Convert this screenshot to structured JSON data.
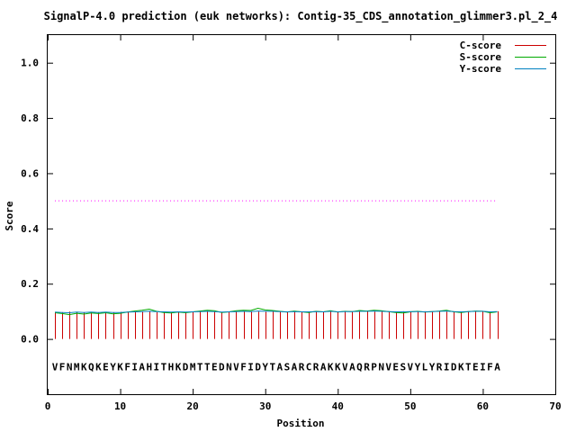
{
  "chart_data": {
    "type": "line",
    "title": "SignalP-4.0 prediction (euk networks): Contig-35_CDS_annotation_glimmer3.pl_2_4",
    "xlabel": "Position",
    "ylabel": "Score",
    "xlim": [
      0,
      70
    ],
    "ylim": [
      -0.2,
      1.1
    ],
    "xticks": [
      0,
      10,
      20,
      30,
      40,
      50,
      60,
      70
    ],
    "yticks": [
      0.0,
      0.2,
      0.4,
      0.6,
      0.8,
      1.0
    ],
    "xtick_labels": [
      "0",
      "10",
      "20",
      "30",
      "40",
      "50",
      "60",
      "70"
    ],
    "ytick_labels": [
      "0.0",
      "0.2",
      "0.4",
      "0.6",
      "0.8",
      "1.0"
    ],
    "grid": false,
    "legend_position": "top-right",
    "threshold": {
      "y": 0.5,
      "color": "#ff00ff"
    },
    "sequence": "VFNMKQKEYKFIAHITHKDMTTEDNVFIDYTASARCRAKKVAQRPNVESVYLYRIDKTEIFA",
    "series": [
      {
        "name": "C-score",
        "style": "impulses",
        "color": "#cc0000",
        "values": [
          0.098,
          0.097,
          0.099,
          0.098,
          0.097,
          0.098,
          0.097,
          0.098,
          0.097,
          0.098,
          0.097,
          0.098,
          0.099,
          0.098,
          0.097,
          0.098,
          0.097,
          0.098,
          0.098,
          0.099,
          0.098,
          0.099,
          0.098,
          0.098,
          0.099,
          0.098,
          0.099,
          0.098,
          0.099,
          0.098,
          0.099,
          0.098,
          0.099,
          0.098,
          0.099,
          0.098,
          0.099,
          0.098,
          0.099,
          0.099,
          0.098,
          0.099,
          0.099,
          0.1,
          0.099,
          0.099,
          0.1,
          0.099,
          0.1,
          0.099,
          0.099,
          0.1,
          0.099,
          0.1,
          0.099,
          0.1,
          0.099,
          0.1,
          0.099,
          0.1,
          0.099,
          0.1
        ]
      },
      {
        "name": "S-score",
        "style": "line",
        "color": "#00aa00",
        "values": [
          0.095,
          0.092,
          0.088,
          0.093,
          0.09,
          0.094,
          0.092,
          0.095,
          0.091,
          0.093,
          0.097,
          0.101,
          0.104,
          0.108,
          0.1,
          0.096,
          0.094,
          0.097,
          0.095,
          0.098,
          0.101,
          0.104,
          0.102,
          0.096,
          0.098,
          0.102,
          0.104,
          0.103,
          0.111,
          0.105,
          0.103,
          0.1,
          0.097,
          0.101,
          0.098,
          0.096,
          0.1,
          0.098,
          0.102,
          0.097,
          0.1,
          0.099,
          0.103,
          0.101,
          0.104,
          0.102,
          0.099,
          0.096,
          0.094,
          0.098,
          0.1,
          0.097,
          0.099,
          0.101,
          0.104,
          0.098,
          0.096,
          0.099,
          0.101,
          0.1,
          0.095,
          0.098
        ]
      },
      {
        "name": "Y-score",
        "style": "line",
        "color": "#0080c0",
        "values": [
          0.097,
          0.096,
          0.095,
          0.097,
          0.096,
          0.097,
          0.096,
          0.097,
          0.096,
          0.096,
          0.097,
          0.098,
          0.099,
          0.1,
          0.099,
          0.098,
          0.097,
          0.098,
          0.097,
          0.098,
          0.099,
          0.1,
          0.099,
          0.097,
          0.098,
          0.099,
          0.1,
          0.099,
          0.101,
          0.1,
          0.1,
          0.099,
          0.098,
          0.099,
          0.098,
          0.098,
          0.099,
          0.098,
          0.1,
          0.098,
          0.099,
          0.099,
          0.1,
          0.1,
          0.101,
          0.1,
          0.099,
          0.098,
          0.098,
          0.099,
          0.099,
          0.098,
          0.099,
          0.1,
          0.101,
          0.099,
          0.098,
          0.099,
          0.1,
          0.1,
          0.098,
          0.099
        ]
      }
    ]
  }
}
